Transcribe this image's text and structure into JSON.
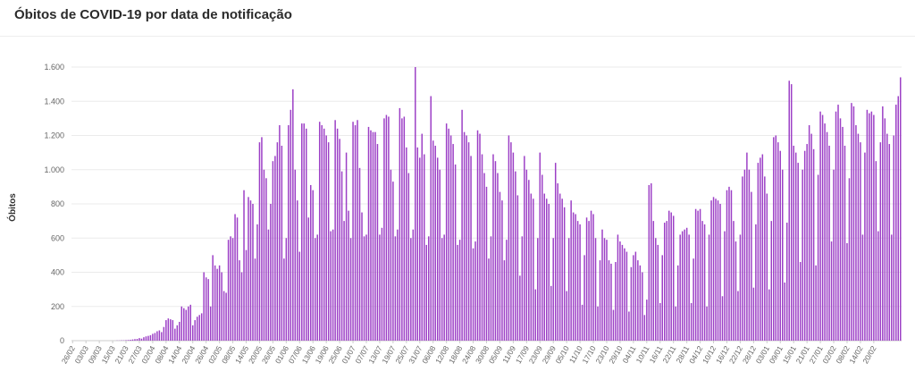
{
  "chart_data": {
    "type": "bar",
    "title": "Óbitos de COVID-19 por data de notificação",
    "xlabel": "",
    "ylabel": "Óbitos",
    "ylim": [
      0,
      1600
    ],
    "yticks": [
      0,
      200,
      400,
      600,
      800,
      1000,
      1200,
      1400,
      1600
    ],
    "ytick_labels": [
      "0",
      "200",
      "400",
      "600",
      "800",
      "1.000",
      "1.200",
      "1.400",
      "1.600"
    ],
    "x_start_date": "2020-02-26",
    "x_tick_labels": [
      "26/02",
      "03/03",
      "09/03",
      "15/03",
      "21/03",
      "27/03",
      "02/04",
      "08/04",
      "14/04",
      "20/04",
      "26/04",
      "02/05",
      "08/05",
      "14/05",
      "20/05",
      "26/05",
      "01/06",
      "07/06",
      "13/06",
      "19/06",
      "25/06",
      "01/07",
      "07/07",
      "13/07",
      "19/07",
      "25/07",
      "31/07",
      "06/08",
      "12/08",
      "18/08",
      "24/08",
      "30/08",
      "05/09",
      "11/09",
      "17/09",
      "23/09",
      "29/09",
      "05/10",
      "11/10",
      "17/10",
      "23/10",
      "29/10",
      "04/11",
      "10/11",
      "16/11",
      "22/11",
      "28/11",
      "04/12",
      "10/12",
      "16/12",
      "22/12",
      "28/12",
      "03/01",
      "09/01",
      "15/01",
      "21/01",
      "27/01",
      "02/02",
      "08/02",
      "14/02",
      "20/02"
    ],
    "color": "#9c3fc6",
    "grid": true,
    "values": [
      0,
      0,
      0,
      0,
      0,
      0,
      0,
      0,
      0,
      0,
      0,
      0,
      0,
      0,
      0,
      0,
      0,
      0,
      0,
      0,
      1,
      1,
      2,
      2,
      3,
      4,
      5,
      7,
      9,
      10,
      15,
      12,
      20,
      25,
      28,
      32,
      40,
      45,
      55,
      60,
      50,
      80,
      120,
      130,
      125,
      120,
      70,
      90,
      110,
      200,
      190,
      180,
      200,
      210,
      90,
      120,
      140,
      150,
      160,
      400,
      370,
      360,
      200,
      500,
      440,
      420,
      440,
      400,
      290,
      280,
      590,
      610,
      600,
      740,
      720,
      470,
      400,
      880,
      530,
      840,
      820,
      800,
      480,
      680,
      1160,
      1190,
      1000,
      950,
      650,
      800,
      1050,
      1080,
      1160,
      1260,
      1140,
      480,
      600,
      1260,
      1350,
      1470,
      1000,
      820,
      520,
      1270,
      1270,
      1240,
      720,
      910,
      880,
      600,
      620,
      1280,
      1260,
      1240,
      1200,
      1160,
      640,
      650,
      1290,
      1240,
      1180,
      990,
      700,
      1100,
      760,
      600,
      1280,
      1260,
      1290,
      1010,
      750,
      610,
      620,
      1250,
      1230,
      1220,
      1220,
      1150,
      620,
      660,
      1300,
      1320,
      1310,
      1000,
      930,
      610,
      650,
      1360,
      1300,
      1310,
      1130,
      980,
      600,
      650,
      1600,
      1130,
      1070,
      1210,
      1090,
      560,
      610,
      1430,
      1170,
      1140,
      1070,
      1000,
      600,
      620,
      1270,
      1240,
      1200,
      1150,
      1030,
      560,
      590,
      1350,
      1220,
      1200,
      1160,
      1080,
      540,
      580,
      1230,
      1210,
      1090,
      980,
      900,
      480,
      610,
      1090,
      1050,
      980,
      870,
      820,
      470,
      590,
      1200,
      1160,
      1100,
      990,
      850,
      380,
      610,
      1080,
      1000,
      940,
      860,
      830,
      300,
      600,
      1100,
      970,
      860,
      830,
      800,
      320,
      600,
      1040,
      920,
      860,
      830,
      780,
      290,
      600,
      820,
      750,
      740,
      700,
      680,
      210,
      500,
      720,
      700,
      760,
      740,
      600,
      200,
      470,
      650,
      600,
      590,
      470,
      450,
      180,
      460,
      620,
      580,
      560,
      540,
      520,
      170,
      430,
      500,
      520,
      470,
      440,
      400,
      150,
      240,
      910,
      920,
      700,
      600,
      560,
      220,
      500,
      690,
      700,
      760,
      750,
      730,
      200,
      440,
      620,
      640,
      650,
      660,
      620,
      220,
      480,
      770,
      760,
      770,
      700,
      680,
      200,
      620,
      820,
      840,
      830,
      820,
      800,
      260,
      640,
      880,
      900,
      880,
      700,
      580,
      290,
      620,
      960,
      1000,
      1100,
      1000,
      870,
      310,
      680,
      1040,
      1070,
      1090,
      960,
      860,
      300,
      700,
      1190,
      1200,
      1160,
      1110,
      1000,
      340,
      690,
      1520,
      1500,
      1140,
      1100,
      1040,
      460,
      1000,
      1110,
      1150,
      1260,
      1210,
      1120,
      440,
      970,
      1340,
      1320,
      1270,
      1220,
      1140,
      580,
      1000,
      1340,
      1380,
      1300,
      1250,
      1140,
      570,
      950,
      1390,
      1370,
      1260,
      1210,
      1160,
      620,
      1100,
      1350,
      1330,
      1340,
      1320,
      1050,
      640,
      1160,
      1370,
      1300,
      1210,
      1150,
      620,
      1200,
      1380,
      1430,
      1540
    ]
  }
}
